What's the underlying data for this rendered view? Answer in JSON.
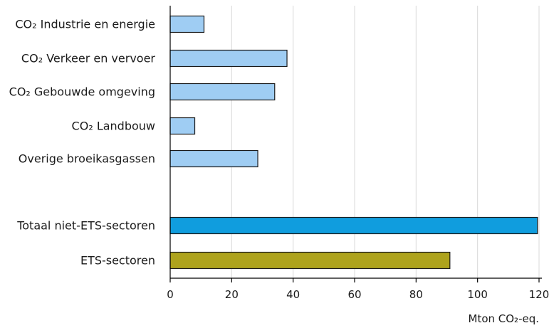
{
  "chart_data": {
    "type": "bar",
    "orientation": "horizontal",
    "categories": [
      "CO₂ Industrie en energie",
      "CO₂ Verkeer en vervoer",
      "CO₂ Gebouwde omgeving",
      "CO₂ Landbouw",
      "Overige broeikasgassen",
      "",
      "Totaal niet-ETS-sectoren",
      "ETS-sectoren"
    ],
    "values": [
      11,
      38,
      34,
      8,
      28.5,
      null,
      119.5,
      91
    ],
    "bar_colors": [
      "#9fcdf3",
      "#9fcdf3",
      "#9fcdf3",
      "#9fcdf3",
      "#9fcdf3",
      null,
      "#109dde",
      "#aea31c"
    ],
    "xlabel": "Mton CO₂-eq.",
    "xlim": [
      0,
      120
    ],
    "xticks": [
      0,
      20,
      40,
      60,
      80,
      100,
      120
    ],
    "grid": true,
    "legend": "none"
  }
}
